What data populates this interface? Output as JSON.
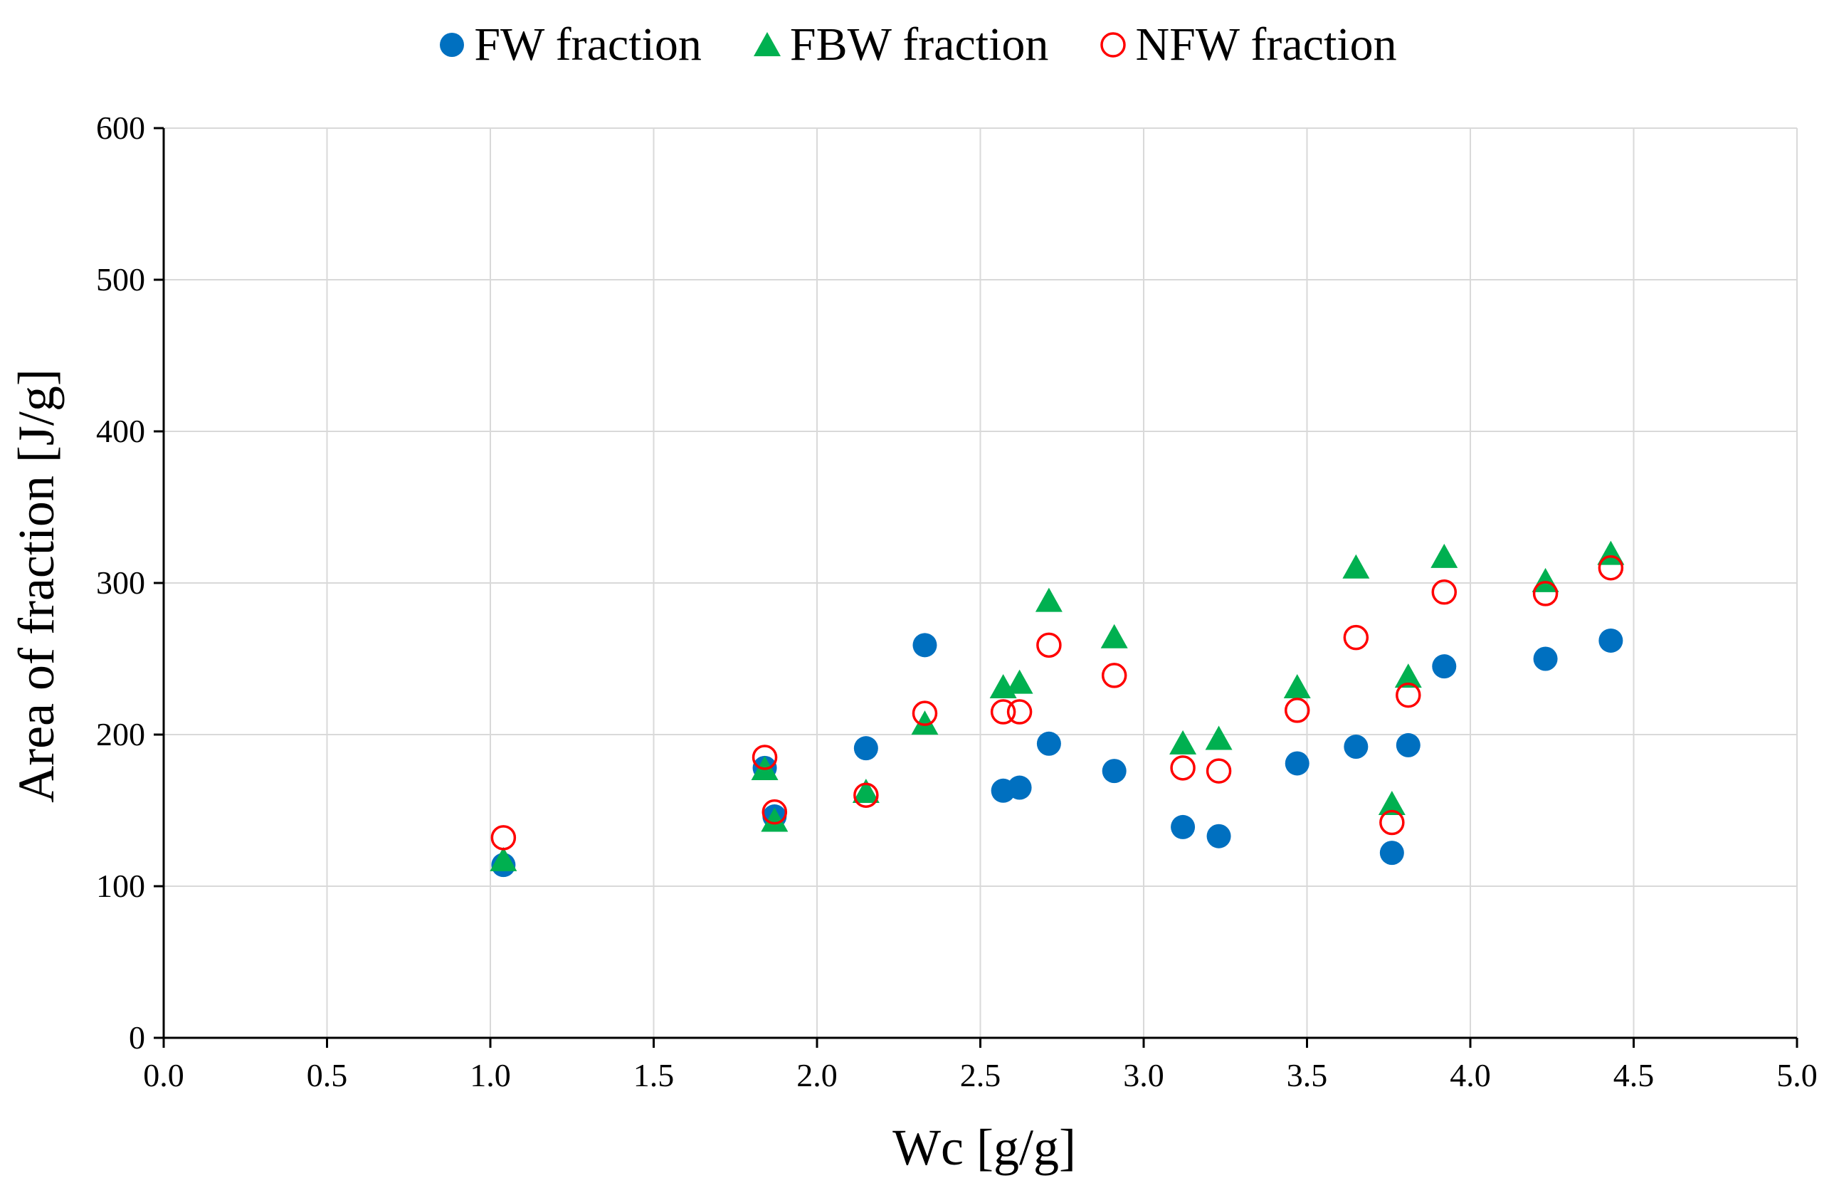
{
  "chart_data": {
    "type": "scatter",
    "title": "",
    "xlabel": "Wc [g/g]",
    "ylabel": "Area of fraction [J/g]",
    "xlim": [
      0,
      5
    ],
    "ylim": [
      0,
      600
    ],
    "x_ticks": [
      0,
      0.5,
      1,
      1.5,
      2,
      2.5,
      3,
      3.5,
      4,
      4.5,
      5
    ],
    "x_tick_labels": [
      "0.0",
      "0.5",
      "1.0",
      "1.5",
      "2.0",
      "2.5",
      "3.0",
      "3.5",
      "4.0",
      "4.5",
      "5.0"
    ],
    "y_ticks": [
      0,
      100,
      200,
      300,
      400,
      500,
      600
    ],
    "y_tick_labels": [
      "0",
      "100",
      "200",
      "300",
      "400",
      "500",
      "600"
    ],
    "grid": true,
    "legend_position": "top-center",
    "series": [
      {
        "name": "FW fraction",
        "marker": "circle-filled",
        "color": "#0070C0",
        "points": [
          [
            1.04,
            114
          ],
          [
            1.84,
            178
          ],
          [
            1.87,
            146
          ],
          [
            2.15,
            191
          ],
          [
            2.33,
            259
          ],
          [
            2.57,
            163
          ],
          [
            2.62,
            165
          ],
          [
            2.71,
            194
          ],
          [
            2.91,
            176
          ],
          [
            3.12,
            139
          ],
          [
            3.23,
            133
          ],
          [
            3.47,
            181
          ],
          [
            3.65,
            192
          ],
          [
            3.76,
            122
          ],
          [
            3.81,
            193
          ],
          [
            3.92,
            245
          ],
          [
            4.23,
            250
          ],
          [
            4.43,
            262
          ]
        ]
      },
      {
        "name": "FBW fraction",
        "marker": "triangle-filled",
        "color": "#00B050",
        "points": [
          [
            1.04,
            116
          ],
          [
            1.84,
            176
          ],
          [
            1.87,
            142
          ],
          [
            2.15,
            161
          ],
          [
            2.33,
            206
          ],
          [
            2.57,
            230
          ],
          [
            2.62,
            233
          ],
          [
            2.71,
            287
          ],
          [
            2.91,
            263
          ],
          [
            3.12,
            193
          ],
          [
            3.23,
            196
          ],
          [
            3.47,
            230
          ],
          [
            3.65,
            309
          ],
          [
            3.76,
            153
          ],
          [
            3.81,
            237
          ],
          [
            3.92,
            316
          ],
          [
            4.23,
            300
          ],
          [
            4.43,
            318
          ]
        ]
      },
      {
        "name": "NFW fraction",
        "marker": "circle-open",
        "color": "#FF0000",
        "points": [
          [
            1.04,
            132
          ],
          [
            1.84,
            185
          ],
          [
            1.87,
            149
          ],
          [
            2.15,
            160
          ],
          [
            2.33,
            214
          ],
          [
            2.57,
            215
          ],
          [
            2.62,
            215
          ],
          [
            2.71,
            259
          ],
          [
            2.91,
            239
          ],
          [
            3.12,
            178
          ],
          [
            3.23,
            176
          ],
          [
            3.47,
            216
          ],
          [
            3.65,
            264
          ],
          [
            3.76,
            142
          ],
          [
            3.81,
            226
          ],
          [
            3.92,
            294
          ],
          [
            4.23,
            293
          ],
          [
            4.43,
            310
          ]
        ]
      }
    ]
  }
}
